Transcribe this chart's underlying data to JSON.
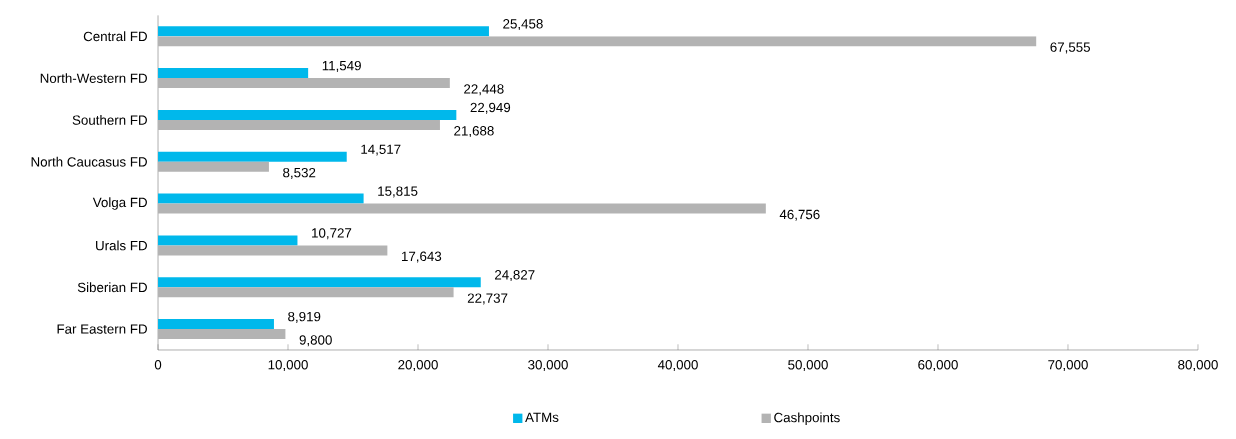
{
  "chart_data": {
    "type": "bar",
    "orientation": "horizontal",
    "categories": [
      "Central FD",
      "North-Western FD",
      "Southern FD",
      "North Caucasus FD",
      "Volga FD",
      "Urals FD",
      "Siberian FD",
      "Far Eastern FD"
    ],
    "series": [
      {
        "name": "ATMs",
        "color": "#00b8eb",
        "values": [
          25458,
          11549,
          22949,
          14517,
          15815,
          10727,
          24827,
          8919
        ],
        "value_labels": [
          "25,458",
          "11,549",
          "22,949",
          "14,517",
          "15,815",
          "10,727",
          "24,827",
          "8,919"
        ]
      },
      {
        "name": "Cashpoints",
        "color": "#b3b3b3",
        "values": [
          67555,
          22448,
          21688,
          8532,
          46756,
          17643,
          22737,
          9800
        ],
        "value_labels": [
          "67,555",
          "22,448",
          "21,688",
          "8,532",
          "46,756",
          "17,643",
          "22,737",
          "9,800"
        ]
      }
    ],
    "xlim": [
      0,
      80000
    ],
    "xticks": [
      0,
      {
        "value": 10000,
        "label": "10,000"
      },
      {
        "value": 20000,
        "label": "20,000"
      },
      {
        "value": 30000,
        "label": "30,000"
      },
      {
        "value": 40000,
        "label": "40,000"
      },
      {
        "value": 50000,
        "label": "50,000"
      },
      {
        "value": 60000,
        "label": "60,000"
      },
      {
        "value": 70000,
        "label": "70,000"
      },
      {
        "value": 80000,
        "label": "80,000"
      }
    ],
    "grid": false,
    "legend": "bottom"
  }
}
